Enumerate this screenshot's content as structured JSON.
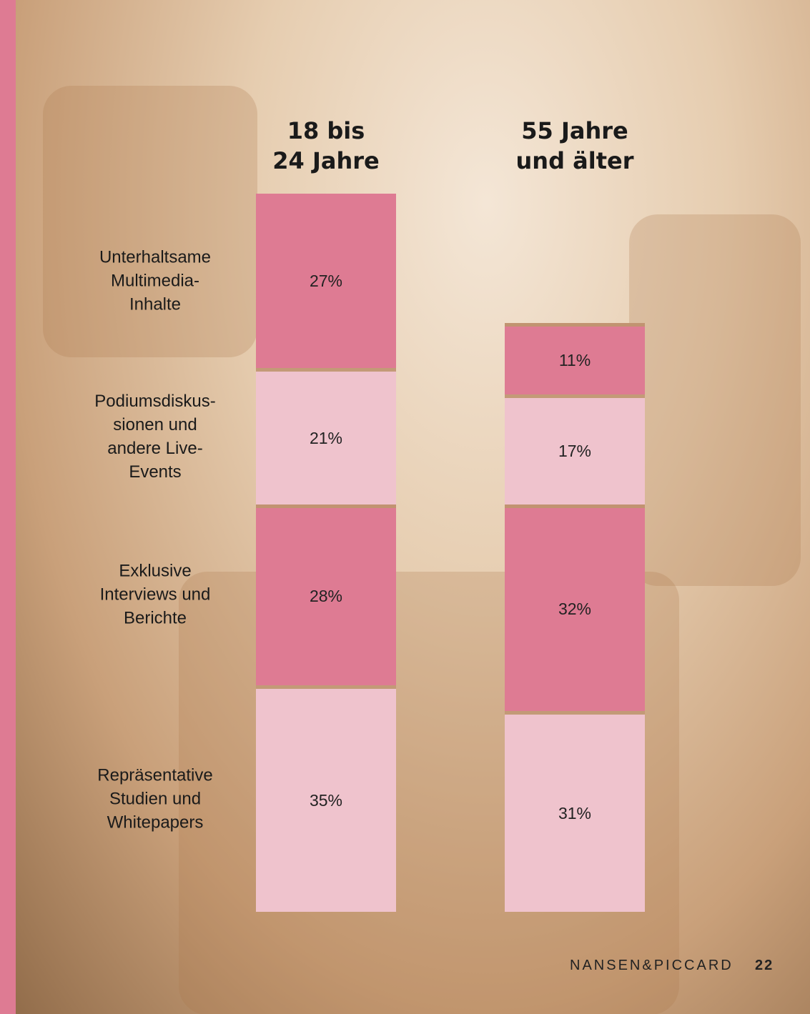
{
  "chart_data": {
    "type": "stacked-bar",
    "categories": [
      "18 bis\n24 Jahre",
      "55 Jahre\nund älter"
    ],
    "series": [
      {
        "name": "Unterhaltsame\nMultimedia-\nInhalte",
        "color": "#de7b93",
        "values": [
          27,
          11
        ],
        "value_labels": [
          "27%",
          "11%"
        ]
      },
      {
        "name": "Podiumsdiskus-\nsionen und\nandere Live-\nEvents",
        "color": "#efc3cd",
        "values": [
          21,
          17
        ],
        "value_labels": [
          "21%",
          "17%"
        ]
      },
      {
        "name": "Exklusive\nInterviews und\nBerichte",
        "color": "#de7b93",
        "values": [
          28,
          32
        ],
        "value_labels": [
          "28%",
          "32%"
        ]
      },
      {
        "name": "Repräsentative\nStudien und\nWhitepapers",
        "color": "#efc3cd",
        "values": [
          35,
          31
        ],
        "value_labels": [
          "35%",
          "31%"
        ]
      }
    ]
  },
  "footer": {
    "brand": "NANSEN&PICCARD",
    "page": "22"
  }
}
